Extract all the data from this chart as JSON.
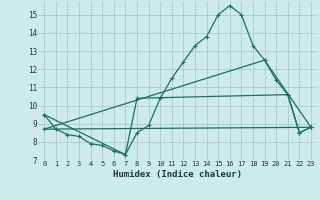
{
  "xlabel": "Humidex (Indice chaleur)",
  "bg_color": "#ceeaea",
  "grid_color": "#aacccc",
  "line_color": "#1a7060",
  "xlim": [
    -0.5,
    23.5
  ],
  "ylim": [
    7.0,
    15.7
  ],
  "xticks": [
    0,
    1,
    2,
    3,
    4,
    5,
    6,
    7,
    8,
    9,
    10,
    11,
    12,
    13,
    14,
    15,
    16,
    17,
    18,
    19,
    20,
    21,
    22,
    23
  ],
  "yticks": [
    7,
    8,
    9,
    10,
    11,
    12,
    13,
    14,
    15
  ],
  "line1_x": [
    0,
    1,
    2,
    3,
    4,
    5,
    6,
    7,
    8,
    9,
    10,
    11,
    12,
    13,
    14,
    15,
    16,
    17,
    18,
    19,
    20,
    21,
    22,
    23
  ],
  "line1_y": [
    9.5,
    8.7,
    8.4,
    8.3,
    7.9,
    7.8,
    7.5,
    7.3,
    8.5,
    8.9,
    10.4,
    11.5,
    12.4,
    13.3,
    13.8,
    15.0,
    15.5,
    15.0,
    13.3,
    12.5,
    11.4,
    10.6,
    8.5,
    8.8
  ],
  "line2_x": [
    0,
    7,
    8,
    21,
    22,
    23
  ],
  "line2_y": [
    9.5,
    7.3,
    10.4,
    10.6,
    8.5,
    8.8
  ],
  "line3_x": [
    0,
    23
  ],
  "line3_y": [
    8.7,
    8.8
  ],
  "line4_x": [
    0,
    19,
    23
  ],
  "line4_y": [
    8.7,
    12.5,
    8.8
  ]
}
